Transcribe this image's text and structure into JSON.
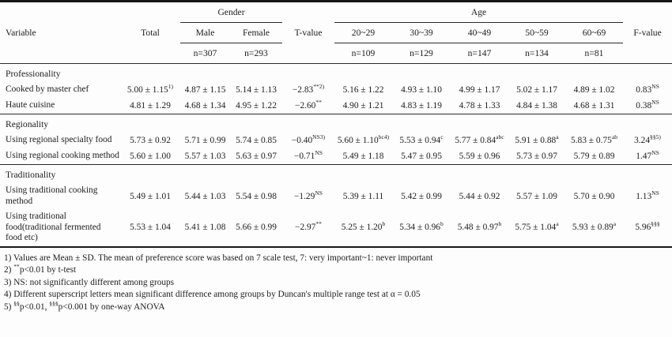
{
  "page": {
    "background": "#fdfdfd",
    "rule_color": "#2a2a2a",
    "text_color": "#1c1c1c"
  },
  "table": {
    "header": {
      "variable": "Variable",
      "total": "Total",
      "gender": "Gender",
      "age": "Age",
      "t_value": "T-value",
      "f_value": "F-value",
      "gender_cols": [
        {
          "label": "Male",
          "n": "n=307"
        },
        {
          "label": "Female",
          "n": "n=293"
        }
      ],
      "age_cols": [
        {
          "label": "20~29",
          "n": "n=109"
        },
        {
          "label": "30~39",
          "n": "n=129"
        },
        {
          "label": "40~49",
          "n": "n=147"
        },
        {
          "label": "50~59",
          "n": "n=134"
        },
        {
          "label": "60~69",
          "n": "n=81"
        }
      ]
    },
    "sections": [
      {
        "title": "Professionality",
        "rows": [
          {
            "variable": "Cooked by master chef",
            "cells": [
              {
                "text": "5.00 ± 1.15",
                "sup": "1)"
              },
              {
                "text": "4.87 ± 1.15"
              },
              {
                "text": "5.14 ± 1.13"
              },
              {
                "text": "−2.83",
                "sup": "**2)"
              },
              {
                "text": "5.16 ± 1.22"
              },
              {
                "text": "4.93 ± 1.10"
              },
              {
                "text": "4.99 ± 1.17"
              },
              {
                "text": "5.02 ± 1.17"
              },
              {
                "text": "4.89 ± 1.02"
              },
              {
                "text": "0.83",
                "sup": "NS"
              }
            ]
          },
          {
            "variable": "Haute cuisine",
            "cells": [
              {
                "text": "4.81 ± 1.29"
              },
              {
                "text": "4.68 ± 1.34"
              },
              {
                "text": "4.95 ± 1.22"
              },
              {
                "text": "−2.60",
                "sup": "**"
              },
              {
                "text": "4.90 ± 1.21"
              },
              {
                "text": "4.83 ± 1.19"
              },
              {
                "text": "4.78 ± 1.33"
              },
              {
                "text": "4.84 ± 1.38"
              },
              {
                "text": "4.68 ± 1.31"
              },
              {
                "text": "0.38",
                "sup": "NS"
              }
            ]
          }
        ]
      },
      {
        "title": "Regionality",
        "rows": [
          {
            "variable": "Using regional specialty food",
            "cells": [
              {
                "text": "5.73 ± 0.92"
              },
              {
                "text": "5.71 ± 0.99"
              },
              {
                "text": "5.74 ± 0.85"
              },
              {
                "text": "−0.40",
                "sup": "NS3)"
              },
              {
                "text": "5.60 ± 1.10",
                "sup": "bc4)"
              },
              {
                "text": "5.53 ± 0.94",
                "sup": "c"
              },
              {
                "text": "5.77 ± 0.84",
                "sup": "abc"
              },
              {
                "text": "5.91 ± 0.88",
                "sup": "a"
              },
              {
                "text": "5.83 ± 0.75",
                "sup": "ab"
              },
              {
                "text": "3.24",
                "sup": "§§5)"
              }
            ]
          },
          {
            "variable": "Using regional cooking method",
            "cells": [
              {
                "text": "5.60 ± 1.00"
              },
              {
                "text": "5.57 ± 1.03"
              },
              {
                "text": "5.63 ± 0.97"
              },
              {
                "text": "−0.71",
                "sup": "NS"
              },
              {
                "text": "5.49 ± 1.18"
              },
              {
                "text": "5.47 ± 0.95"
              },
              {
                "text": "5.59 ± 0.96"
              },
              {
                "text": "5.73 ± 0.97"
              },
              {
                "text": "5.79 ± 0.89"
              },
              {
                "text": "1.47",
                "sup": "NS"
              }
            ]
          }
        ]
      },
      {
        "title": "Traditionality",
        "rows": [
          {
            "variable": "Using traditional cooking method",
            "cells": [
              {
                "text": "5.49 ± 1.01"
              },
              {
                "text": "5.44 ± 1.03"
              },
              {
                "text": "5.54 ± 0.98"
              },
              {
                "text": "−1.29",
                "sup": "NS"
              },
              {
                "text": "5.39 ± 1.11"
              },
              {
                "text": "5.42 ± 0.99"
              },
              {
                "text": "5.44 ± 0.92"
              },
              {
                "text": "5.57 ± 1.09"
              },
              {
                "text": "5.70 ± 0.90"
              },
              {
                "text": "1.13",
                "sup": "NS"
              }
            ]
          },
          {
            "variable": "Using traditional food(traditional fermented food etc)",
            "cells": [
              {
                "text": "5.53 ± 1.04"
              },
              {
                "text": "5.41 ± 1.08"
              },
              {
                "text": "5.66 ± 0.99"
              },
              {
                "text": "−2.97",
                "sup": "**"
              },
              {
                "text": "5.25 ± 1.20",
                "sup": "b"
              },
              {
                "text": "5.34 ± 0.96",
                "sup": "b"
              },
              {
                "text": "5.48 ± 0.97",
                "sup": "b"
              },
              {
                "text": "5.75 ± 1.04",
                "sup": "a"
              },
              {
                "text": "5.93 ± 0.89",
                "sup": "a"
              },
              {
                "text": "5.96",
                "sup": "§§§"
              }
            ]
          }
        ]
      }
    ]
  },
  "footnotes": [
    {
      "num": "1)",
      "segments": [
        {
          "t": "Values are Mean ± SD. The mean of preference score was based on 7 scale test, 7: very important~1: never important"
        }
      ]
    },
    {
      "num": "2)",
      "segments": [
        {
          "s": "**"
        },
        {
          "t": "p<0.01 by t-test"
        }
      ]
    },
    {
      "num": "3)",
      "segments": [
        {
          "t": "NS: not significantly different among groups"
        }
      ]
    },
    {
      "num": "4)",
      "segments": [
        {
          "t": "Different superscript letters mean significant difference among groups by Duncan's multiple range test at α = 0.05"
        }
      ]
    },
    {
      "num": "5)",
      "segments": [
        {
          "s": "§§"
        },
        {
          "t": "p<0.01, "
        },
        {
          "s": "§§§"
        },
        {
          "t": "p<0.001 by one-way ANOVA"
        }
      ]
    }
  ]
}
